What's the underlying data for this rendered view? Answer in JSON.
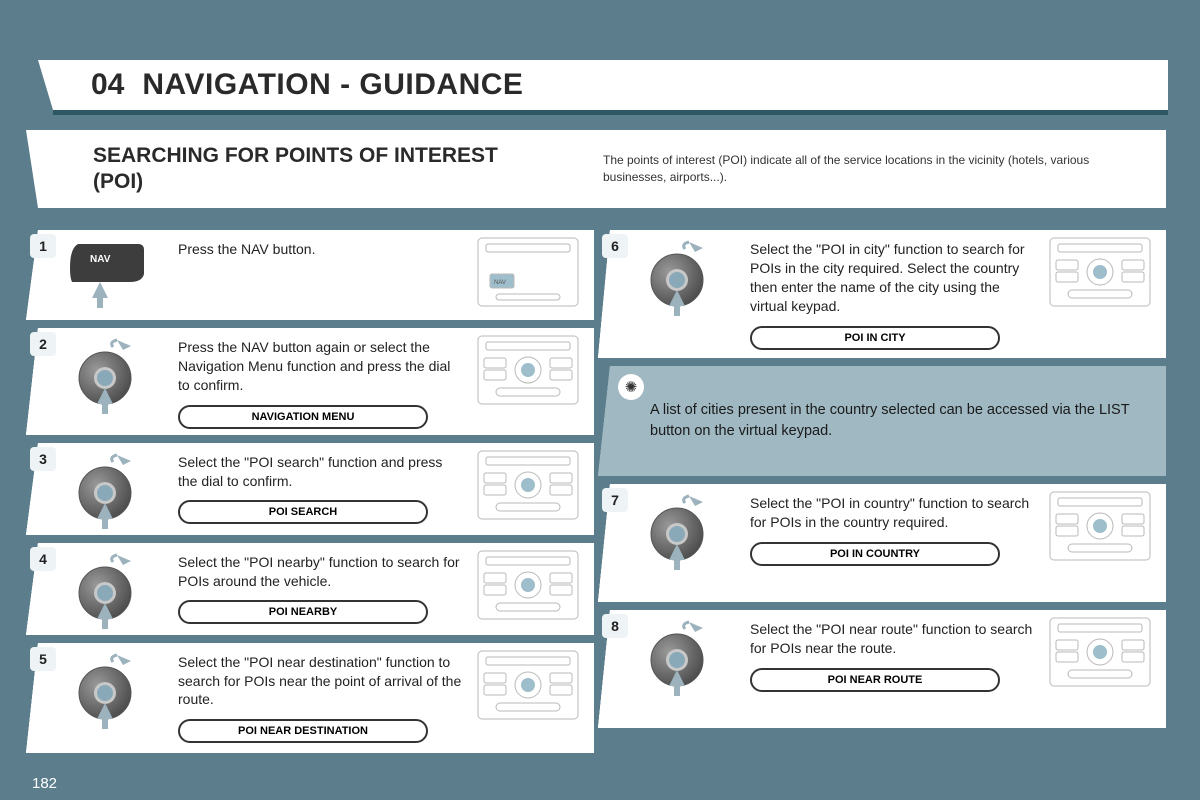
{
  "page_number": "182",
  "title": {
    "number": "04",
    "text": "NAVIGATION - GUIDANCE"
  },
  "subheader": {
    "title": "SEARCHING FOR POINTS OF INTEREST (POI)",
    "description": "The points of interest (POI) indicate all of the service locations in the vicinity (hotels, various businesses, airports...)."
  },
  "left_steps": [
    {
      "n": "1",
      "text": "Press the NAV button.",
      "pill": null,
      "icon_type": "nav"
    },
    {
      "n": "2",
      "text": "Press the NAV button again or select the Navigation Menu function and press the dial to confirm.",
      "pill": "NAVIGATION MENU",
      "icon_type": "dial"
    },
    {
      "n": "3",
      "text": "Select the \"POI search\" function and press the dial to confirm.",
      "pill": "POI SEARCH",
      "icon_type": "dial"
    },
    {
      "n": "4",
      "text": "Select the \"POI nearby\" function to search for POIs around the vehicle.",
      "pill": "POI NEARBY",
      "icon_type": "dial"
    },
    {
      "n": "5",
      "text": "Select the \"POI near destination\" function to search for POIs near the point of arrival of the route.",
      "pill": "POI NEAR DESTINATION",
      "icon_type": "dial"
    }
  ],
  "right_steps_top": [
    {
      "n": "6",
      "text": "Select the \"POI in city\" function to search for POIs in the city required. Select the country then enter the name of the city using the virtual keypad.",
      "pill": "POI IN CITY",
      "icon_type": "dial"
    }
  ],
  "tip": {
    "text": "A list of cities present in the country selected can be accessed via the LIST button on the virtual keypad."
  },
  "right_steps_bottom": [
    {
      "n": "7",
      "text": "Select the \"POI in country\" function to search for POIs in the country required.",
      "pill": "POI IN COUNTRY",
      "icon_type": "dial"
    },
    {
      "n": "8",
      "text": "Select the \"POI near route\" function to search for POIs near the route.",
      "pill": "POI NEAR ROUTE",
      "icon_type": "dial"
    }
  ],
  "colors": {
    "page_bg": "#5b7d8c",
    "tip_bg": "#9fb8c2",
    "dial_fill": "#6f6f6f",
    "dial_center": "#8aa9b8",
    "arrow": "#9cb2bd",
    "console_line": "#b9b9b9",
    "console_knob": "#9ebecb"
  }
}
